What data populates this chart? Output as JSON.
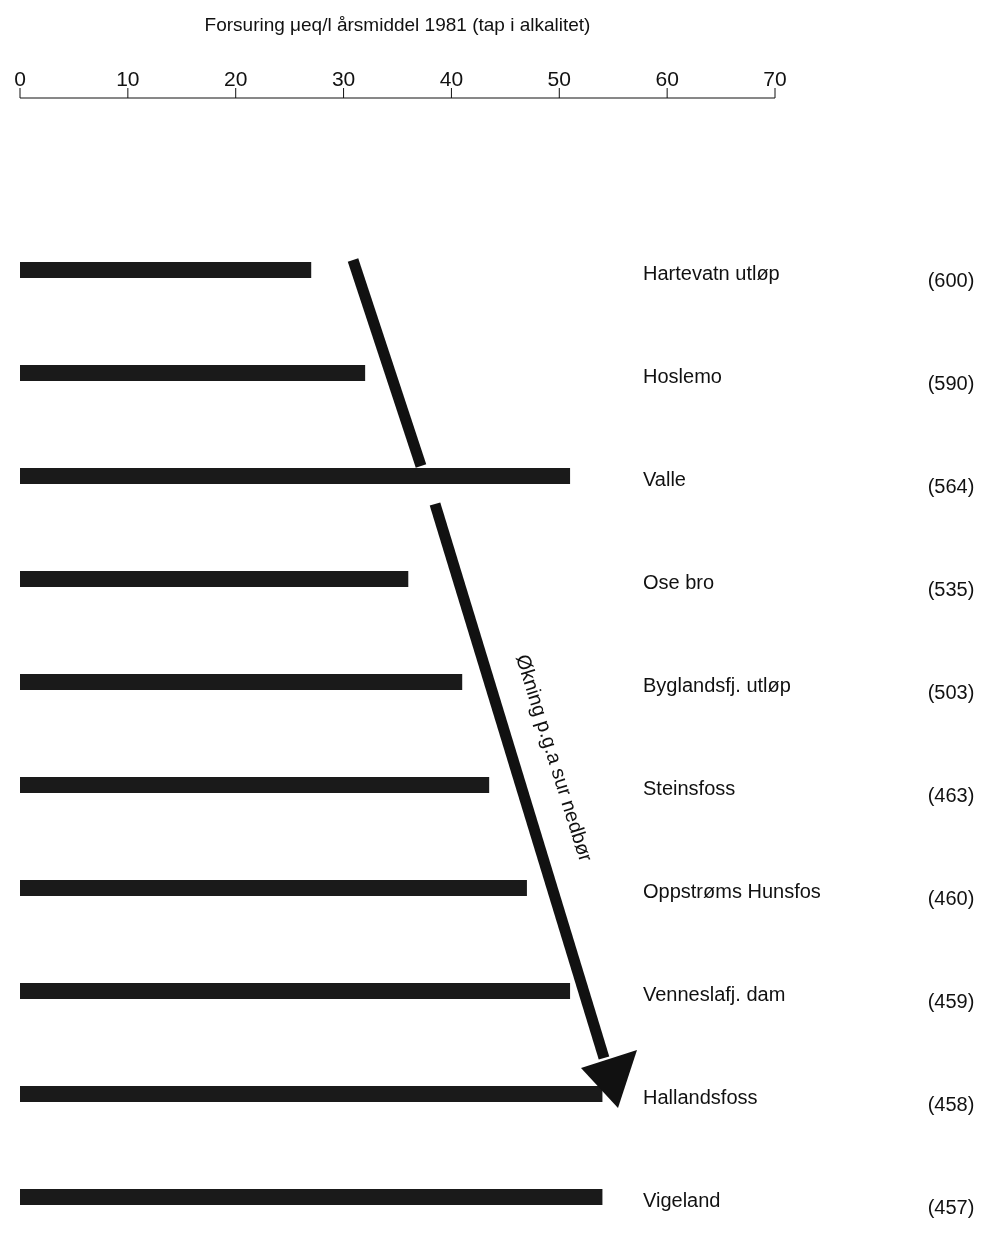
{
  "chart_data": {
    "type": "bar",
    "orientation": "horizontal",
    "xlabel": "Forsuring μeq/l årsmiddel 1981 (tap i alkalitet)",
    "categories": [
      "Hartevatn utløp",
      "Hoslemo",
      "Valle",
      "Ose bro",
      "Byglandsfj. utløp",
      "Steinsfoss",
      "Oppstrøms Hunsfos",
      "Venneslafj. dam",
      "Hallandsfoss",
      "Vigeland"
    ],
    "values": [
      27,
      32,
      51,
      36,
      41,
      43.5,
      47,
      51,
      54,
      54
    ],
    "color": "#1a1a1a",
    "xlim": [
      0,
      70
    ],
    "xticks": [
      0,
      10,
      20,
      30,
      40,
      50,
      60,
      70
    ],
    "grid": false,
    "legend": false,
    "annotations": [
      "Økning p.g.a sur nedbør",
      "(600)",
      "(590)",
      "(564)",
      "(535)",
      "(503)",
      "(463)",
      "(460)",
      "(459)",
      "(458)",
      "(457)"
    ]
  }
}
